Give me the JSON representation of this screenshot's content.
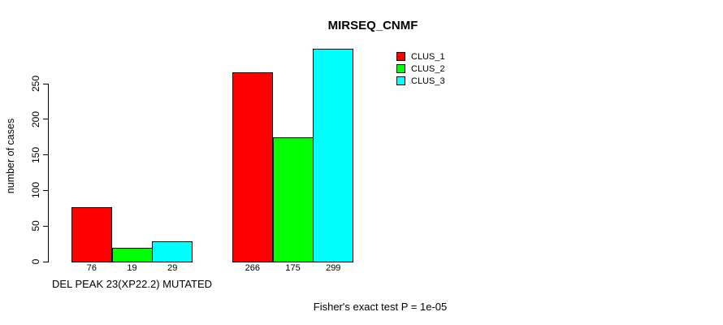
{
  "chart_data": {
    "type": "bar",
    "title": "MIRSEQ_CNMF",
    "ylabel": "number of cases",
    "xlabel": "",
    "categories": [
      "DEL PEAK 23(XP22.2) MUTATED",
      ""
    ],
    "series": [
      {
        "name": "CLUS_1",
        "color": "#ff0000",
        "values": [
          76,
          266
        ]
      },
      {
        "name": "CLUS_2",
        "color": "#00ff00",
        "values": [
          19,
          175
        ]
      },
      {
        "name": "CLUS_3",
        "color": "#00ffff",
        "values": [
          29,
          299
        ]
      }
    ],
    "yticks": [
      0,
      50,
      100,
      150,
      200,
      250
    ],
    "ylim": [
      0,
      310
    ],
    "grid": false,
    "legend_position": "top-right",
    "bar_border_color": "#000000",
    "axis_color": "#000000",
    "annotation": "Fisher's exact test P = 1e-05"
  }
}
